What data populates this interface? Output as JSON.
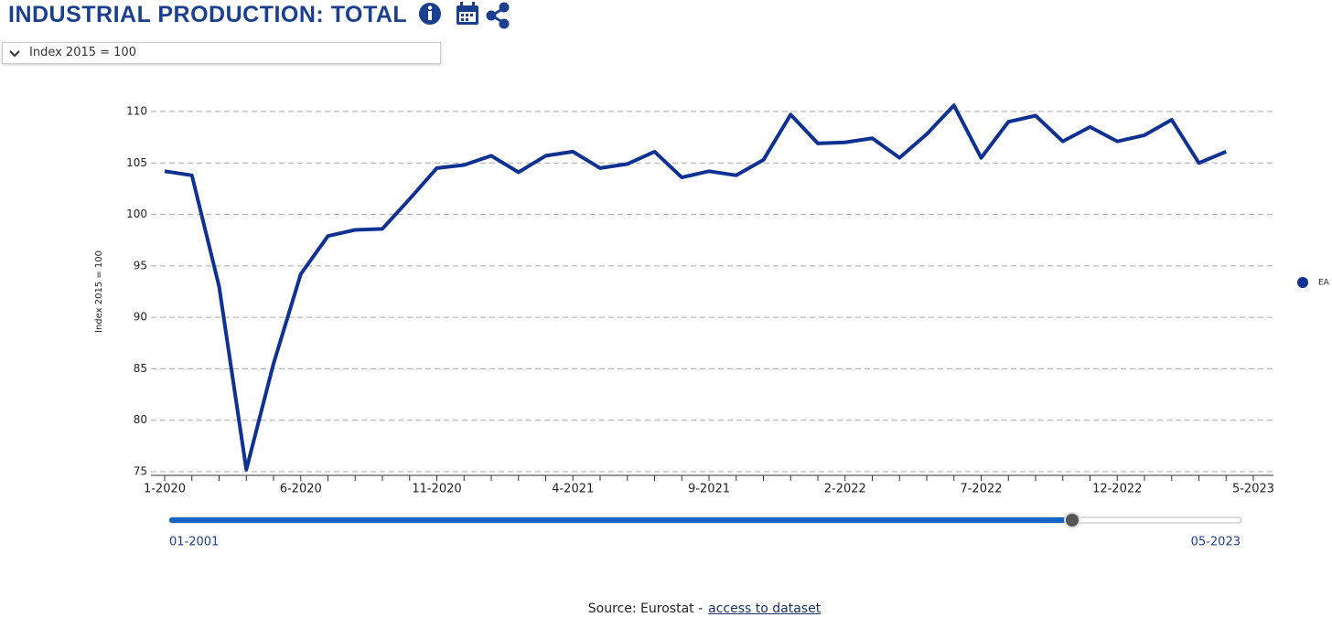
{
  "title": "INDUSTRIAL PRODUCTION: TOTAL",
  "unit_selector": "Index 2015 = 100",
  "chart_data": {
    "type": "line",
    "ylabel": "Index 2015 = 100",
    "categories": [
      "1-2020",
      null,
      null,
      null,
      null,
      "6-2020",
      null,
      null,
      null,
      null,
      "11-2020",
      null,
      null,
      null,
      null,
      "4-2021",
      null,
      null,
      null,
      null,
      "9-2021",
      null,
      null,
      null,
      null,
      "2-2022",
      null,
      null,
      null,
      null,
      "7-2022",
      null,
      null,
      null,
      null,
      "12-2022",
      null,
      null,
      null,
      null,
      "5-2023"
    ],
    "series": [
      {
        "name": "EA",
        "color": "#0e3192",
        "values": [
          104.2,
          103.8,
          93,
          75.2,
          85.5,
          94.2,
          97.9,
          98.5,
          98.6,
          101.5,
          104.5,
          104.8,
          105.7,
          104.1,
          105.7,
          106.1,
          104.5,
          104.9,
          106.1,
          103.6,
          104.2,
          103.8,
          105.3,
          109.7,
          106.9,
          107.0,
          107.4,
          105.5,
          107.8,
          110.6,
          105.5,
          109.0,
          109.6,
          107.1,
          108.5,
          107.1,
          107.7,
          109.2,
          105.0,
          106.1,
          null
        ]
      }
    ],
    "ylim": [
      75,
      110
    ],
    "yticks": [
      75,
      80,
      85,
      90,
      95,
      100,
      105,
      110
    ],
    "grid": true,
    "legend": "right"
  },
  "slider": {
    "start": "01-2001",
    "end": "05-2023"
  },
  "source": {
    "text": "Source: Eurostat -",
    "link": "access to dataset"
  }
}
